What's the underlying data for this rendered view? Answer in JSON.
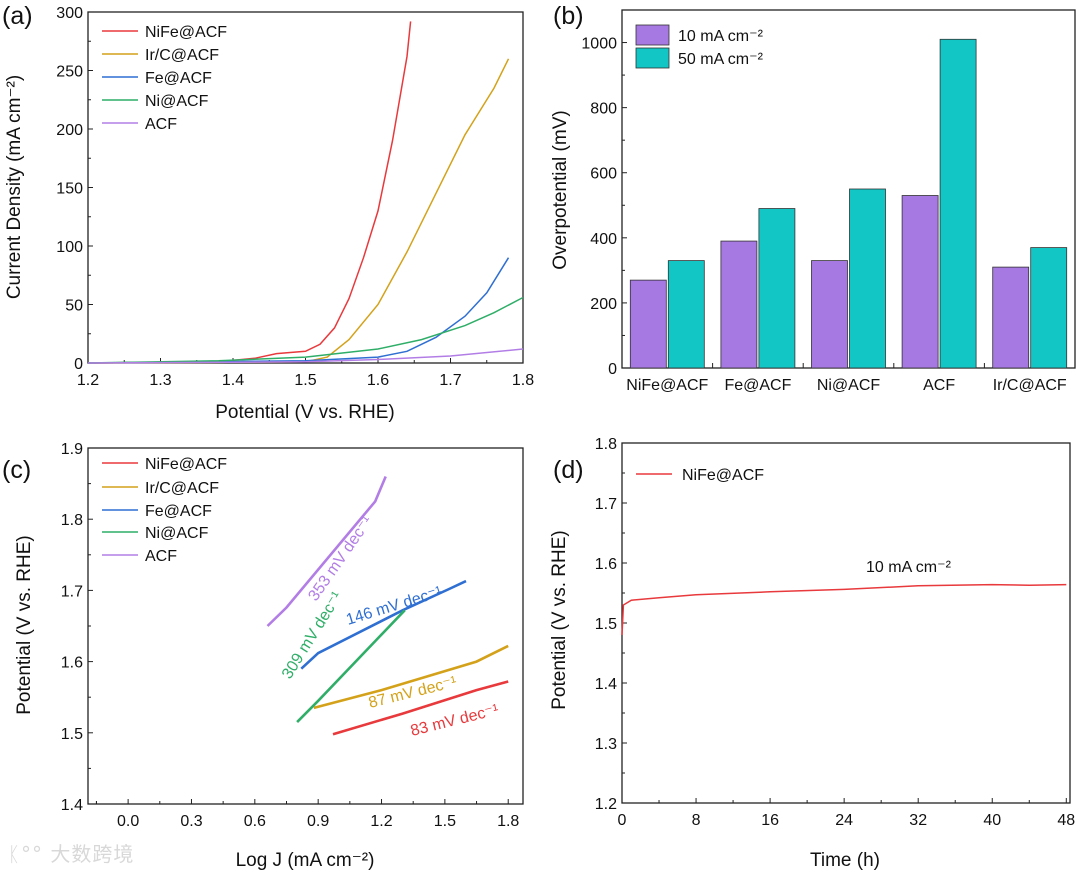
{
  "watermark": "大数跨境",
  "chart_data": [
    {
      "panel": "(a)",
      "type": "line",
      "xlabel": "Potential (V vs. RHE)",
      "ylabel": "Current Density (mA cm⁻²)",
      "xlim": [
        1.2,
        1.8
      ],
      "ylim": [
        0,
        300
      ],
      "xticks": [
        "1.2",
        "1.3",
        "1.4",
        "1.5",
        "1.6",
        "1.7",
        "1.8"
      ],
      "yticks": [
        "0",
        "50",
        "100",
        "150",
        "200",
        "250",
        "300"
      ],
      "legend": "top-left",
      "series": [
        {
          "name": "NiFe@ACF",
          "color": "#e8393c",
          "points": [
            [
              1.2,
              0
            ],
            [
              1.38,
              1
            ],
            [
              1.43,
              4
            ],
            [
              1.46,
              8
            ],
            [
              1.5,
              10
            ],
            [
              1.52,
              16
            ],
            [
              1.54,
              30
            ],
            [
              1.56,
              55
            ],
            [
              1.58,
              90
            ],
            [
              1.6,
              130
            ],
            [
              1.62,
              190
            ],
            [
              1.64,
              262
            ],
            [
              1.645,
              292
            ]
          ]
        },
        {
          "name": "Ir/C@ACF",
          "color": "#d4a21a",
          "points": [
            [
              1.2,
              0
            ],
            [
              1.5,
              1
            ],
            [
              1.53,
              5
            ],
            [
              1.56,
              20
            ],
            [
              1.6,
              50
            ],
            [
              1.64,
              95
            ],
            [
              1.68,
              145
            ],
            [
              1.72,
              195
            ],
            [
              1.76,
              235
            ],
            [
              1.78,
              260
            ]
          ]
        },
        {
          "name": "Fe@ACF",
          "color": "#2f6fd2",
          "points": [
            [
              1.2,
              0
            ],
            [
              1.5,
              2
            ],
            [
              1.6,
              5
            ],
            [
              1.64,
              10
            ],
            [
              1.68,
              22
            ],
            [
              1.72,
              40
            ],
            [
              1.75,
              60
            ],
            [
              1.78,
              90
            ]
          ]
        },
        {
          "name": "Ni@ACF",
          "color": "#2fae68",
          "points": [
            [
              1.2,
              0
            ],
            [
              1.38,
              2
            ],
            [
              1.5,
              5
            ],
            [
              1.6,
              12
            ],
            [
              1.66,
              20
            ],
            [
              1.72,
              32
            ],
            [
              1.76,
              43
            ],
            [
              1.8,
              56
            ]
          ]
        },
        {
          "name": "ACF",
          "color": "#b27ee6",
          "points": [
            [
              1.2,
              0
            ],
            [
              1.5,
              1
            ],
            [
              1.6,
              3
            ],
            [
              1.7,
              6
            ],
            [
              1.8,
              12
            ]
          ]
        }
      ]
    },
    {
      "panel": "(b)",
      "type": "bar",
      "ylabel": "Overpotential (mV)",
      "ylim": [
        0,
        1100
      ],
      "yticks": [
        "0",
        "200",
        "400",
        "600",
        "800",
        "1000"
      ],
      "categories": [
        "NiFe@ACF",
        "Fe@ACF",
        "Ni@ACF",
        "ACF",
        "Ir/C@ACF"
      ],
      "legend": "top-left",
      "series": [
        {
          "name": "10 mA cm⁻²",
          "color": "#a678e2",
          "values": [
            270,
            390,
            330,
            530,
            310
          ]
        },
        {
          "name": "50 mA cm⁻²",
          "color": "#12c6c6",
          "values": [
            330,
            490,
            550,
            1010,
            370
          ]
        }
      ]
    },
    {
      "panel": "(c)",
      "type": "line",
      "xlabel": "Log J (mA cm⁻²)",
      "ylabel": "Potential (V vs. RHE)",
      "xlim": [
        -0.19,
        1.87
      ],
      "ylim": [
        1.4,
        1.9
      ],
      "xticks": [
        "0.0",
        "0.3",
        "0.6",
        "0.9",
        "1.2",
        "1.5",
        "1.8"
      ],
      "yticks": [
        "1.4",
        "1.5",
        "1.6",
        "1.7",
        "1.8",
        "1.9"
      ],
      "legend": "top-left",
      "series": [
        {
          "name": "NiFe@ACF",
          "color": "#e8393c",
          "points": [
            [
              0.97,
              1.498
            ],
            [
              1.3,
              1.527
            ],
            [
              1.65,
              1.56
            ],
            [
              1.8,
              1.572
            ]
          ],
          "annotation": "83 mV dec⁻¹"
        },
        {
          "name": "Ir/C@ACF",
          "color": "#d4a21a",
          "points": [
            [
              0.88,
              1.535
            ],
            [
              1.2,
              1.56
            ],
            [
              1.65,
              1.6
            ],
            [
              1.8,
              1.622
            ]
          ],
          "annotation": "87 mV dec⁻¹"
        },
        {
          "name": "Fe@ACF",
          "color": "#2f6fd2",
          "points": [
            [
              0.82,
              1.59
            ],
            [
              0.9,
              1.612
            ],
            [
              1.3,
              1.672
            ],
            [
              1.52,
              1.702
            ],
            [
              1.6,
              1.713
            ]
          ],
          "annotation": "146 mV dec⁻¹"
        },
        {
          "name": "Ni@ACF",
          "color": "#2fae68",
          "points": [
            [
              0.8,
              1.515
            ],
            [
              0.9,
              1.545
            ],
            [
              1.31,
              1.672
            ]
          ],
          "annotation": "309 mV dec⁻¹"
        },
        {
          "name": "ACF",
          "color": "#b27ee6",
          "points": [
            [
              0.66,
              1.65
            ],
            [
              0.75,
              1.676
            ],
            [
              1.17,
              1.825
            ],
            [
              1.22,
              1.86
            ]
          ],
          "annotation": "353 mV dec⁻¹"
        }
      ]
    },
    {
      "panel": "(d)",
      "type": "line",
      "xlabel": "Time (h)",
      "ylabel": "Potential (V vs. RHE)",
      "xlim": [
        0,
        48.4
      ],
      "ylim": [
        1.2,
        1.8
      ],
      "xticks": [
        "0",
        "8",
        "16",
        "24",
        "32",
        "40",
        "48"
      ],
      "yticks": [
        "1.2",
        "1.3",
        "1.4",
        "1.5",
        "1.6",
        "1.7",
        "1.8"
      ],
      "legend": "top-left",
      "annotation": "10 mA cm⁻²",
      "series": [
        {
          "name": "NiFe@ACF",
          "color": "#e8393c",
          "points": [
            [
              0,
              1.48
            ],
            [
              0.15,
              1.53
            ],
            [
              1,
              1.538
            ],
            [
              4,
              1.542
            ],
            [
              8,
              1.547
            ],
            [
              16,
              1.552
            ],
            [
              24,
              1.556
            ],
            [
              32,
              1.562
            ],
            [
              40,
              1.564
            ],
            [
              44,
              1.563
            ],
            [
              48,
              1.564
            ]
          ]
        }
      ]
    }
  ]
}
